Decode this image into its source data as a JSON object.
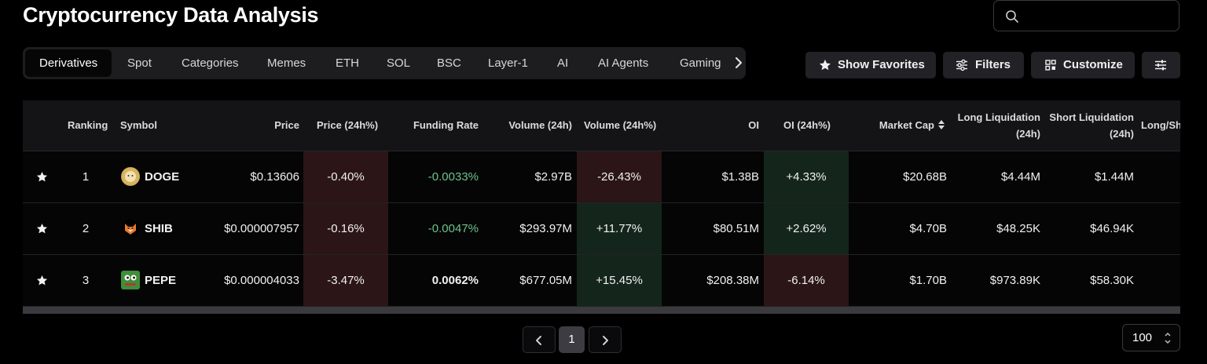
{
  "page": {
    "title": "Cryptocurrency Data Analysis"
  },
  "search": {
    "placeholder": "",
    "value": ""
  },
  "tabs": [
    {
      "label": "Derivatives",
      "active": true
    },
    {
      "label": "Spot"
    },
    {
      "label": "Categories"
    },
    {
      "label": "Memes"
    },
    {
      "label": "ETH"
    },
    {
      "label": "SOL"
    },
    {
      "label": "BSC"
    },
    {
      "label": "Layer-1"
    },
    {
      "label": "AI"
    },
    {
      "label": "AI Agents"
    },
    {
      "label": "Gaming"
    }
  ],
  "toolbar": {
    "favorites_label": "Show Favorites",
    "filters_label": "Filters",
    "customize_label": "Customize"
  },
  "table": {
    "headers": {
      "ranking": "Ranking",
      "symbol": "Symbol",
      "price": "Price",
      "price_24h": "Price (24h%)",
      "funding_rate": "Funding Rate",
      "volume_24h": "Volume (24h)",
      "volume_24h_pct": "Volume (24h%)",
      "oi": "OI",
      "oi_24h": "OI (24h%)",
      "market_cap": "Market Cap",
      "long_liq_1": "Long Liquidation",
      "long_liq_2": "(24h)",
      "short_liq_1": "Short Liquidation",
      "short_liq_2": "(24h)",
      "long_short": "Long/Sho"
    },
    "rows": [
      {
        "rank": "1",
        "symbol": "DOGE",
        "price": "$0.13606",
        "price_24h": "-0.40%",
        "funding_rate": "-0.0033%",
        "volume_24h": "$2.97B",
        "volume_24h_pct": "-26.43%",
        "oi": "$1.38B",
        "oi_24h": "+4.33%",
        "market_cap": "$20.68B",
        "long_liq": "$4.44M",
        "short_liq": "$1.44M"
      },
      {
        "rank": "2",
        "symbol": "SHIB",
        "price": "$0.000007957",
        "price_24h": "-0.16%",
        "funding_rate": "-0.0047%",
        "volume_24h": "$293.97M",
        "volume_24h_pct": "+11.77%",
        "oi": "$80.51M",
        "oi_24h": "+2.62%",
        "market_cap": "$4.70B",
        "long_liq": "$48.25K",
        "short_liq": "$46.94K"
      },
      {
        "rank": "3",
        "symbol": "PEPE",
        "price": "$0.000004033",
        "price_24h": "-3.47%",
        "funding_rate": "0.0062%",
        "volume_24h": "$677.05M",
        "volume_24h_pct": "+15.45%",
        "oi": "$208.38M",
        "oi_24h": "-6.14%",
        "market_cap": "$1.70B",
        "long_liq": "$973.89K",
        "short_liq": "$58.30K"
      }
    ]
  },
  "pagination": {
    "current_page": "1",
    "page_size": "100"
  },
  "colors": {
    "negative_bg": "#2b1517",
    "positive_bg": "#14261b",
    "funding_negative": "#6dc28a"
  }
}
